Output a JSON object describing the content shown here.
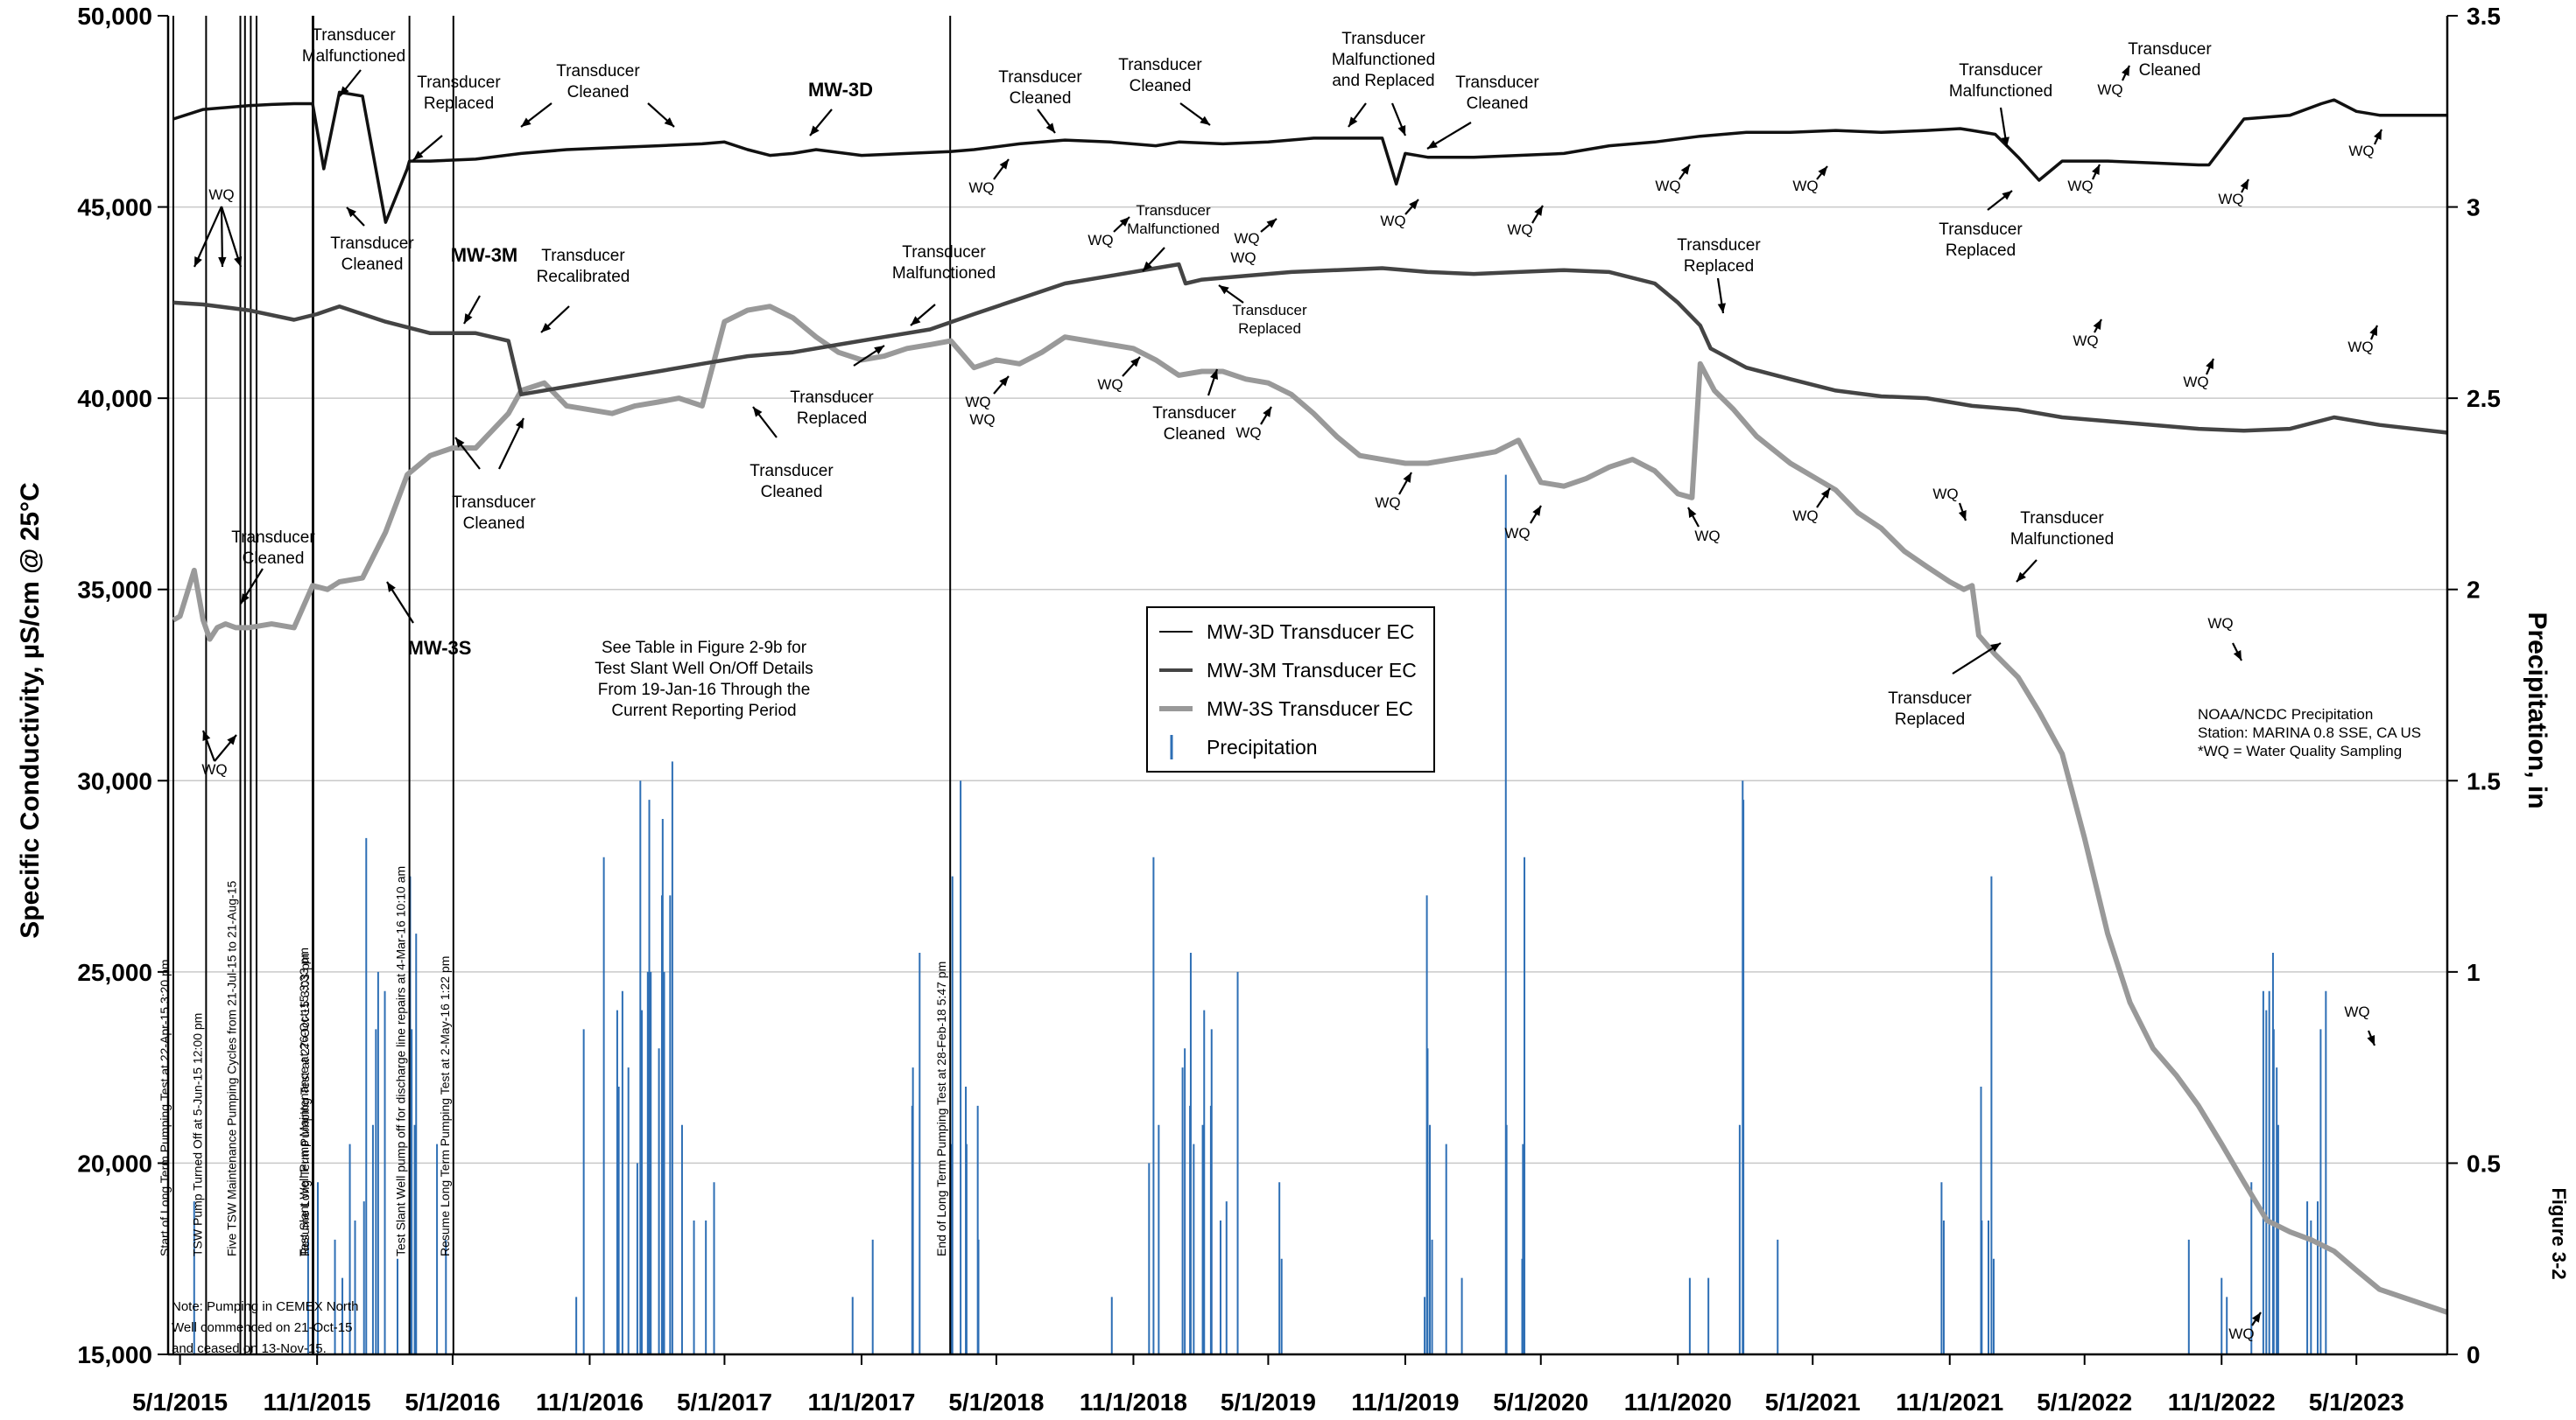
{
  "chart_data": {
    "type": "line",
    "ylabel": "Specific Conductivity, µS/cm @ 25°C",
    "y2label": "Precipitation, in",
    "ylim": [
      15000,
      50000
    ],
    "y2lim": [
      0,
      3.5
    ],
    "yticks": [
      "15,000",
      "20,000",
      "25,000",
      "30,000",
      "35,000",
      "40,000",
      "45,000",
      "50,000"
    ],
    "y2ticks": [
      "0",
      "0.5",
      "1",
      "1.5",
      "2",
      "2.5",
      "3",
      "3.5"
    ],
    "xticks": [
      "5/1/2015",
      "11/1/2015",
      "5/1/2016",
      "11/1/2016",
      "5/1/2017",
      "11/1/2017",
      "5/1/2018",
      "11/1/2018",
      "5/1/2019",
      "11/1/2019",
      "5/1/2020",
      "11/1/2020",
      "5/1/2021",
      "11/1/2021",
      "5/1/2022",
      "11/1/2022",
      "5/1/2023"
    ],
    "xlim": [
      "4/15/2015",
      "8/31/2023"
    ],
    "grid": "horizontal",
    "legend_position": "center",
    "legend": [
      {
        "label": "MW-3D Transducer EC",
        "color": "#111111",
        "kind": "thin-line"
      },
      {
        "label": "MW-3M Transducer EC",
        "color": "#444444",
        "kind": "medium-line"
      },
      {
        "label": "MW-3S Transducer EC",
        "color": "#999999",
        "kind": "thick-line"
      },
      {
        "label": "Precipitation",
        "color": "#2e6fb5",
        "kind": "bar"
      }
    ],
    "series": [
      {
        "name": "MW-3D Transducer EC",
        "color": "#111111",
        "width": 3.5,
        "x": [
          "4/22/2015",
          "6/1/2015",
          "8/1/2015",
          "9/1/2015",
          "10/1/2015",
          "10/26/2015",
          "11/10/2015",
          "12/1/2015",
          "1/1/2016",
          "2/1/2016",
          "3/1/2016",
          "3/4/2016",
          "4/1/2016",
          "6/1/2016",
          "8/1/2016",
          "10/1/2016",
          "12/1/2016",
          "2/1/2017",
          "4/1/2017",
          "5/1/2017",
          "6/1/2017",
          "7/1/2017",
          "8/1/2017",
          "9/1/2017",
          "11/1/2017",
          "1/1/2018",
          "2/28/2018",
          "4/1/2018",
          "6/1/2018",
          "8/1/2018",
          "10/1/2018",
          "12/1/2018",
          "1/1/2019",
          "3/1/2019",
          "5/1/2019",
          "7/1/2019",
          "8/1/2019",
          "9/1/2019",
          "10/1/2019",
          "10/20/2019",
          "11/1/2019",
          "12/1/2019",
          "2/1/2020",
          "4/1/2020",
          "6/1/2020",
          "8/1/2020",
          "10/1/2020",
          "12/1/2020",
          "2/1/2021",
          "4/1/2021",
          "6/1/2021",
          "8/1/2021",
          "10/1/2021",
          "11/15/2021",
          "12/1/2021",
          "1/1/2022",
          "2/1/2022",
          "3/1/2022",
          "4/1/2022",
          "6/1/2022",
          "8/1/2022",
          "10/1/2022",
          "10/15/2022",
          "12/1/2022",
          "2/1/2023",
          "3/15/2023",
          "4/1/2023",
          "5/1/2023",
          "6/1/2023",
          "8/31/2023"
        ],
        "y": [
          47300,
          47550,
          47650,
          47680,
          47700,
          47700,
          46000,
          48000,
          47900,
          44600,
          46000,
          46200,
          46200,
          46250,
          46400,
          46500,
          46550,
          46600,
          46650,
          46700,
          46500,
          46350,
          46400,
          46500,
          46350,
          46400,
          46450,
          46500,
          46650,
          46750,
          46700,
          46600,
          46700,
          46650,
          46700,
          46800,
          46800,
          46800,
          46800,
          45600,
          46400,
          46300,
          46300,
          46350,
          46400,
          46600,
          46700,
          46850,
          46950,
          46950,
          47000,
          46950,
          47000,
          47050,
          47000,
          46900,
          46300,
          45700,
          46200,
          46200,
          46150,
          46100,
          46100,
          47300,
          47400,
          47700,
          47800,
          47500,
          47400,
          47400
        ]
      },
      {
        "name": "MW-3M Transducer EC",
        "color": "#444444",
        "width": 4.5,
        "x": [
          "4/22/2015",
          "6/1/2015",
          "8/1/2015",
          "10/1/2015",
          "11/1/2015",
          "12/1/2015",
          "2/1/2016",
          "4/1/2016",
          "6/1/2016",
          "7/15/2016",
          "8/1/2016",
          "10/1/2016",
          "12/1/2016",
          "2/1/2017",
          "4/1/2017",
          "6/1/2017",
          "8/1/2017",
          "10/1/2017",
          "12/1/2017",
          "2/1/2018",
          "4/1/2018",
          "6/1/2018",
          "8/1/2018",
          "10/1/2018",
          "12/1/2018",
          "1/1/2019",
          "1/10/2019",
          "2/1/2019",
          "4/1/2019",
          "6/1/2019",
          "8/1/2019",
          "10/1/2019",
          "12/1/2019",
          "2/1/2020",
          "4/1/2020",
          "6/1/2020",
          "8/1/2020",
          "10/1/2020",
          "11/1/2020",
          "12/1/2020",
          "12/15/2020",
          "2/1/2021",
          "4/1/2021",
          "6/1/2021",
          "8/1/2021",
          "10/1/2021",
          "12/1/2021",
          "2/1/2022",
          "4/1/2022",
          "6/1/2022",
          "8/1/2022",
          "10/1/2022",
          "12/1/2022",
          "2/1/2023",
          "4/1/2023",
          "6/1/2023",
          "8/31/2023"
        ],
        "y": [
          42500,
          42450,
          42300,
          42050,
          42200,
          42400,
          42000,
          41700,
          41700,
          41500,
          40100,
          40300,
          40500,
          40700,
          40900,
          41100,
          41200,
          41400,
          41600,
          41800,
          42200,
          42600,
          43000,
          43200,
          43400,
          43500,
          43000,
          43100,
          43200,
          43300,
          43350,
          43400,
          43300,
          43250,
          43300,
          43350,
          43300,
          43000,
          42500,
          41900,
          41300,
          40800,
          40500,
          40200,
          40050,
          40000,
          39800,
          39700,
          39500,
          39400,
          39300,
          39200,
          39150,
          39200,
          39500,
          39300,
          39100
        ]
      },
      {
        "name": "MW-3S Transducer EC",
        "color": "#999999",
        "width": 6,
        "x": [
          "4/22/2015",
          "5/1/2015",
          "5/20/2015",
          "6/1/2015",
          "6/10/2015",
          "6/20/2015",
          "7/1/2015",
          "7/15/2015",
          "8/1/2015",
          "9/1/2015",
          "10/1/2015",
          "10/26/2015",
          "11/15/2015",
          "12/1/2015",
          "1/1/2016",
          "2/1/2016",
          "3/1/2016",
          "4/1/2016",
          "5/1/2016",
          "6/1/2016",
          "7/15/2016",
          "8/1/2016",
          "9/1/2016",
          "10/1/2016",
          "11/1/2016",
          "12/1/2016",
          "1/1/2017",
          "2/1/2017",
          "3/1/2017",
          "4/1/2017",
          "5/1/2017",
          "6/1/2017",
          "7/1/2017",
          "8/1/2017",
          "9/1/2017",
          "10/1/2017",
          "11/1/2017",
          "12/1/2017",
          "1/1/2018",
          "2/1/2018",
          "3/1/2018",
          "4/1/2018",
          "5/1/2018",
          "6/1/2018",
          "7/1/2018",
          "8/1/2018",
          "9/1/2018",
          "10/1/2018",
          "11/1/2018",
          "12/1/2018",
          "1/1/2019",
          "2/1/2019",
          "3/1/2019",
          "4/1/2019",
          "5/1/2019",
          "6/1/2019",
          "7/1/2019",
          "8/1/2019",
          "9/1/2019",
          "10/1/2019",
          "11/1/2019",
          "12/1/2019",
          "1/1/2020",
          "2/1/2020",
          "3/1/2020",
          "4/1/2020",
          "5/1/2020",
          "6/1/2020",
          "7/1/2020",
          "8/1/2020",
          "9/1/2020",
          "10/1/2020",
          "11/1/2020",
          "11/20/2020",
          "12/1/2020",
          "12/20/2020",
          "1/15/2021",
          "2/15/2021",
          "4/1/2021",
          "6/1/2021",
          "7/1/2021",
          "8/1/2021",
          "9/1/2021",
          "10/1/2021",
          "11/1/2021",
          "11/20/2021",
          "12/1/2021",
          "12/10/2021",
          "1/1/2022",
          "2/1/2022",
          "3/1/2022",
          "4/1/2022",
          "5/1/2022",
          "6/1/2022",
          "7/1/2022",
          "8/1/2022",
          "9/1/2022",
          "10/1/2022",
          "11/1/2022",
          "12/1/2022",
          "1/1/2023",
          "2/1/2023",
          "3/1/2023",
          "4/1/2023",
          "5/1/2023",
          "6/1/2023",
          "7/1/2023",
          "8/31/2023"
        ],
        "y": [
          34200,
          34300,
          35500,
          34200,
          33700,
          34000,
          34100,
          34000,
          34000,
          34100,
          34000,
          35100,
          35000,
          35200,
          35300,
          36500,
          38000,
          38500,
          38700,
          38700,
          39600,
          40200,
          40400,
          39800,
          39700,
          39600,
          39800,
          39900,
          40000,
          39800,
          42000,
          42300,
          42400,
          42100,
          41600,
          41200,
          41000,
          41100,
          41300,
          41400,
          41500,
          40800,
          41000,
          40900,
          41200,
          41600,
          41500,
          41400,
          41300,
          41000,
          40600,
          40700,
          40700,
          40500,
          40400,
          40100,
          39600,
          39000,
          38500,
          38400,
          38300,
          38300,
          38400,
          38500,
          38600,
          38900,
          37800,
          37700,
          37900,
          38200,
          38400,
          38100,
          37500,
          37400,
          40900,
          40200,
          39700,
          39000,
          38300,
          37600,
          37000,
          36600,
          36000,
          35600,
          35200,
          35000,
          35100,
          33800,
          33300,
          32700,
          31800,
          30700,
          28500,
          26000,
          24200,
          23000,
          22300,
          21500,
          20500,
          19500,
          18500,
          18200,
          18000,
          17700,
          17200,
          16700,
          16500,
          16100
        ]
      }
    ],
    "precipitation": {
      "name": "Precipitation",
      "color": "#2e6fb5",
      "x": [
        "5/20/2015",
        "10/20/2015",
        "11/2/2015",
        "11/25/2015",
        "12/5/2015",
        "12/15/2015",
        "12/22/2015",
        "1/3/2016",
        "1/6/2016",
        "1/15/2016",
        "1/19/2016",
        "1/22/2016",
        "1/31/2016",
        "2/17/2016",
        "3/5/2016",
        "3/7/2016",
        "3/11/2016",
        "3/13/2016",
        "4/10/2016",
        "4/22/2016",
        "10/14/2016",
        "10/24/2016",
        "11/20/2016",
        "12/8/2016",
        "12/10/2016",
        "12/15/2016",
        "12/23/2016",
        "1/4/2017",
        "1/8/2017",
        "1/10/2017",
        "1/18/2017",
        "1/20/2017",
        "1/22/2017",
        "2/2/2017",
        "2/6/2017",
        "2/7/2017",
        "2/9/2017",
        "2/17/2017",
        "2/20/2017",
        "3/5/2017",
        "3/21/2017",
        "4/6/2017",
        "4/17/2017",
        "10/20/2017",
        "11/16/2017",
        "1/8/2018",
        "1/9/2018",
        "1/18/2018",
        "3/1/2018",
        "3/3/2018",
        "3/14/2018",
        "3/21/2018",
        "3/22/2018",
        "4/6/2018",
        "4/7/2018",
        "10/3/2018",
        "11/22/2018",
        "11/28/2018",
        "12/5/2018",
        "1/6/2019",
        "1/9/2019",
        "1/16/2019",
        "1/17/2019",
        "1/21/2019",
        "2/2/2019",
        "2/4/2019",
        "2/13/2019",
        "2/14/2019",
        "2/26/2019",
        "3/6/2019",
        "3/21/2019",
        "5/16/2019",
        "5/19/2019",
        "11/27/2019",
        "11/30/2019",
        "12/1/2019",
        "12/4/2019",
        "12/7/2019",
        "12/26/2019",
        "1/16/2020",
        "3/15/2020",
        "3/16/2020",
        "4/6/2020",
        "4/7/2020",
        "4/9/2020",
        "11/17/2020",
        "12/12/2020",
        "1/23/2021",
        "1/27/2021",
        "1/28/2021",
        "3/15/2021",
        "10/21/2021",
        "10/24/2021",
        "12/13/2021",
        "12/14/2021",
        "12/23/2021",
        "12/27/2021",
        "12/30/2021",
        "9/18/2022",
        "11/1/2022",
        "11/8/2022",
        "12/11/2022",
        "12/27/2022",
        "12/31/2022",
        "1/4/2023",
        "1/9/2023",
        "1/10/2023",
        "1/14/2023",
        "1/16/2023",
        "2/24/2023",
        "3/1/2023",
        "3/10/2023",
        "3/14/2023",
        "3/21/2023"
      ],
      "values": [
        0.4,
        0.3,
        0.45,
        0.3,
        0.2,
        0.55,
        0.35,
        0.4,
        1.35,
        0.6,
        0.85,
        1.0,
        0.95,
        0.25,
        1.25,
        0.85,
        0.6,
        1.1,
        0.55,
        0.3,
        0.15,
        0.85,
        1.3,
        0.9,
        0.7,
        0.95,
        0.75,
        0.5,
        1.5,
        0.9,
        1.0,
        1.45,
        1.0,
        0.8,
        1.2,
        1.4,
        1.0,
        1.2,
        1.55,
        0.6,
        0.35,
        0.35,
        0.45,
        0.15,
        0.3,
        0.65,
        0.75,
        1.05,
        0.55,
        1.25,
        1.5,
        0.7,
        0.55,
        0.65,
        0.3,
        0.15,
        0.5,
        1.3,
        0.6,
        0.75,
        0.8,
        0.65,
        1.05,
        0.55,
        0.6,
        0.9,
        0.65,
        0.85,
        0.35,
        0.4,
        1.0,
        0.45,
        0.25,
        0.15,
        1.2,
        0.8,
        0.6,
        0.3,
        0.55,
        0.2,
        2.3,
        0.6,
        0.25,
        0.55,
        1.3,
        0.2,
        0.2,
        0.6,
        1.5,
        1.45,
        0.3,
        0.45,
        0.35,
        0.7,
        0.35,
        0.35,
        1.25,
        0.25,
        0.3,
        0.2,
        0.15,
        0.45,
        0.95,
        0.9,
        0.95,
        1.05,
        0.85,
        0.75,
        0.6,
        0.4,
        0.35,
        0.4,
        0.85,
        0.95
      ]
    },
    "vertical_markers": [
      {
        "x": "4/22/2015",
        "label": "Start of Long Term Pumping Test at 22-Apr-15 3:20 pm"
      },
      {
        "x": "6/5/2015",
        "label": "TSW Pump Turned Off at 5-Jun-15 12:00 pm"
      },
      {
        "x": "7/21/2015",
        "label": "Five TSW Maintenance Pumping Cycles from 21-Jul-15 to 21-Aug-15"
      },
      {
        "x": "10/26/2015",
        "label": "Test Slant Well Pump Maintenance at 26-Oct-15 3:33 pm"
      },
      {
        "x": "10/27/2015",
        "label": "Resume Long Term Pumping Test at 27-Oct-15 3:03 pm"
      },
      {
        "x": "3/4/2016",
        "label": "Test Slant Well pump off for discharge line repairs at 4-Mar-16 10:10 am"
      },
      {
        "x": "5/2/2016",
        "label": "Resume Long Term Pumping Test at 2-May-16 1:22 pm"
      },
      {
        "x": "2/28/2018",
        "label": "End of Long Term Pumping Test at 28-Feb-18 5:47 pm"
      }
    ],
    "annotations": {
      "mw3d_name": "MW-3D",
      "mw3m_name": "MW-3M",
      "mw3s_name": "MW-3S",
      "transducer_malfunctioned": "Transducer\nMalfunctioned",
      "transducer_replaced": "Transducer\nReplaced",
      "transducer_cleaned": "Transducer\nCleaned",
      "transducer_recalibrated": "Transducer\nRecalibrated",
      "malfunctioned_and_replaced": "Transducer\nMalfunctioned\nand Replaced",
      "wq": "WQ",
      "test_table_note": "See Table in Figure 2-9b for\nTest Slant Well On/Off Details\nFrom 19-Jan-16 Through the\nCurrent Reporting Period",
      "cemex_note": "Note: Pumping in CEMEX North\nWell commenced on 21-Oct-15\nand ceased on 13-Nov-15.",
      "station_note": "NOAA/NCDC Precipitation\nStation: MARINA 0.8 SSE, CA US\n*WQ = Water Quality Sampling",
      "figure_label": "Figure 3-2"
    }
  }
}
